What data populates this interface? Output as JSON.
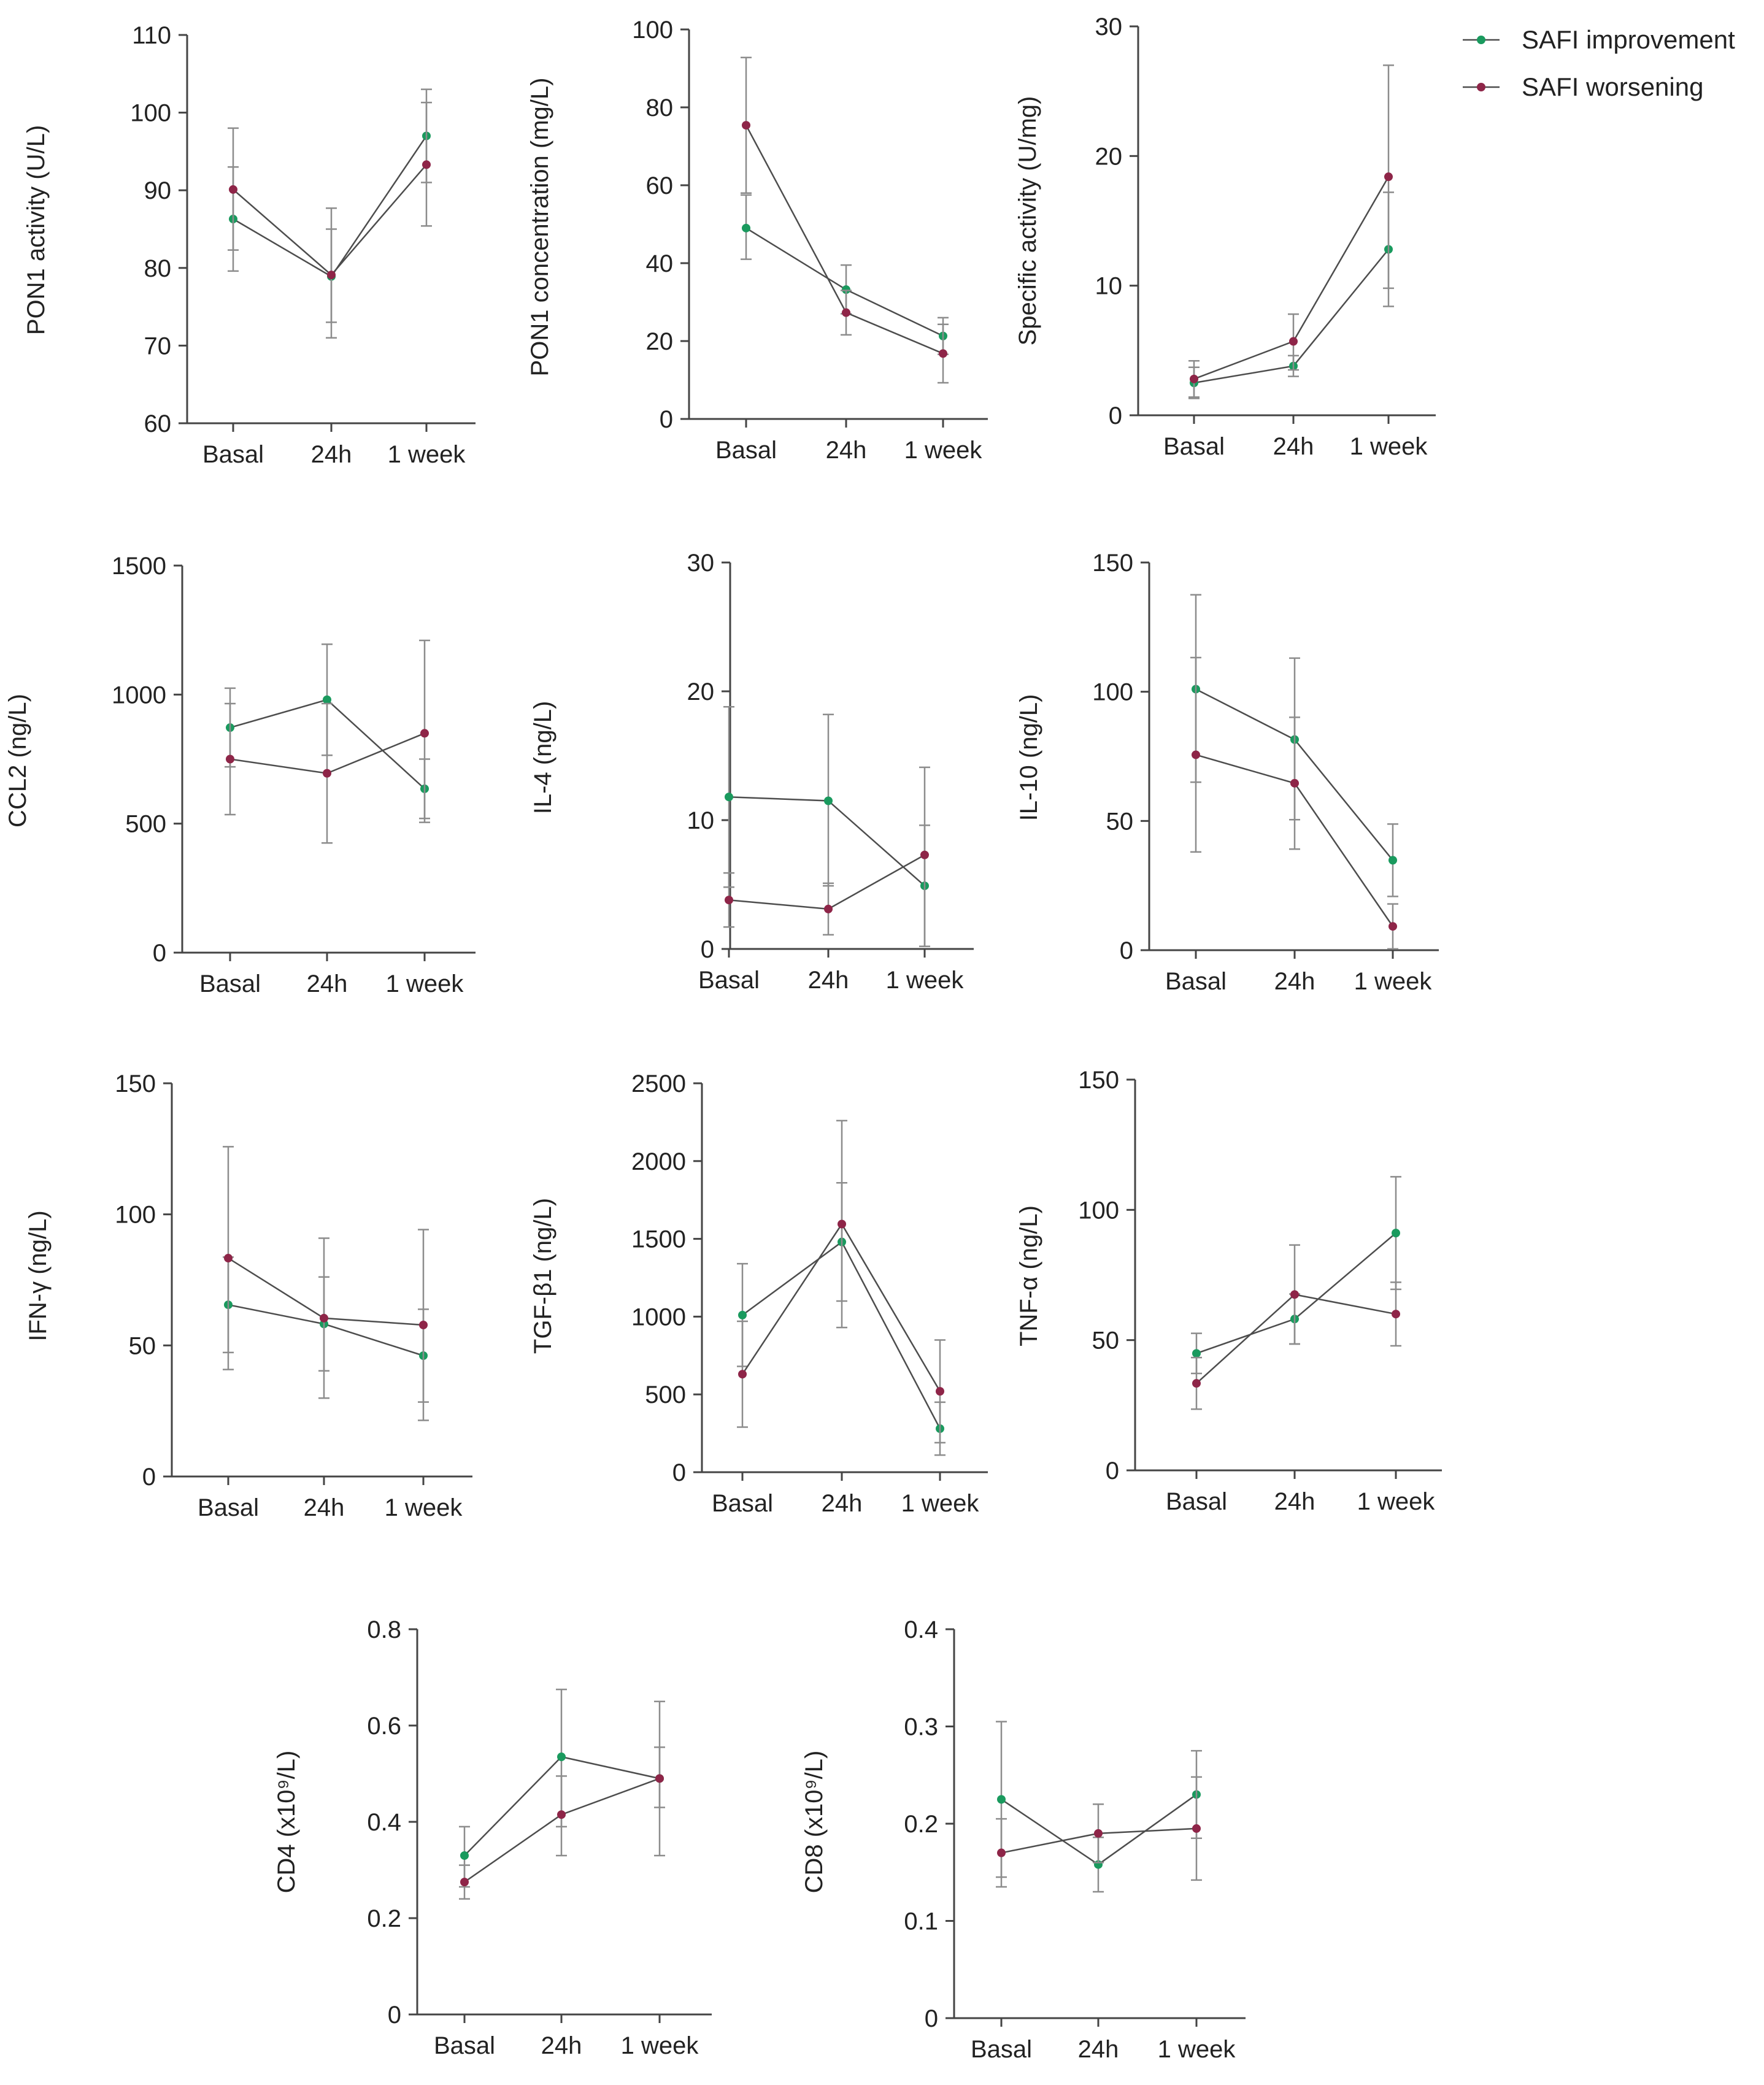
{
  "legend": {
    "items": [
      {
        "label": "SAFI improvement",
        "color": "#1a9a5e"
      },
      {
        "label": "SAFI worsening",
        "color": "#8e2548"
      }
    ]
  },
  "chart_data": [
    {
      "id": "pon1-activity",
      "type": "line",
      "ylabel": "PON1 activity (U/L)",
      "categories": [
        "Basal",
        "24h",
        "1 week"
      ],
      "ylim": [
        60,
        110
      ],
      "yticks": [
        "60",
        "70",
        "80",
        "90",
        "100",
        "110"
      ],
      "series": [
        {
          "name": "SAFI improvement",
          "color": "#1a9a5e",
          "values": [
            86.3,
            78.9,
            97.0
          ],
          "lower": [
            79.6,
            71.0,
            91.0
          ],
          "upper": [
            93.0,
            85.0,
            103.0
          ]
        },
        {
          "name": "SAFI worsening",
          "color": "#8e2548",
          "values": [
            90.1,
            79.1,
            93.3
          ],
          "lower": [
            82.3,
            73.0,
            85.4
          ],
          "upper": [
            98.0,
            87.7,
            101.3
          ]
        }
      ]
    },
    {
      "id": "pon1-concentration",
      "type": "line",
      "ylabel": "PON1 concentration (mg/L)",
      "categories": [
        "Basal",
        "24h",
        "1 week"
      ],
      "ylim": [
        0,
        100
      ],
      "yticks": [
        "0",
        "20",
        "40",
        "60",
        "80",
        "100"
      ],
      "series": [
        {
          "name": "SAFI improvement",
          "color": "#1a9a5e",
          "values": [
            49,
            33.2,
            21.3
          ],
          "lower": [
            41,
            27,
            16.6
          ],
          "upper": [
            57.5,
            39.5,
            26
          ]
        },
        {
          "name": "SAFI worsening",
          "color": "#8e2548",
          "values": [
            75.4,
            27.3,
            16.8
          ],
          "lower": [
            58,
            21.6,
            9.3
          ],
          "upper": [
            92.8,
            33,
            24.3
          ]
        }
      ]
    },
    {
      "id": "specific-activity",
      "type": "line",
      "ylabel": "Specific activity (U/mg)",
      "categories": [
        "Basal",
        "24h",
        "1 week"
      ],
      "ylim": [
        0,
        30
      ],
      "yticks": [
        "0",
        "10",
        "20",
        "30"
      ],
      "series": [
        {
          "name": "SAFI improvement",
          "color": "#1a9a5e",
          "values": [
            2.5,
            3.8,
            12.8
          ],
          "lower": [
            1.3,
            3.0,
            8.4
          ],
          "upper": [
            3.7,
            4.6,
            17.2
          ]
        },
        {
          "name": "SAFI worsening",
          "color": "#8e2548",
          "values": [
            2.8,
            5.7,
            18.4
          ],
          "lower": [
            1.4,
            3.5,
            9.8
          ],
          "upper": [
            4.2,
            7.8,
            27.0
          ]
        }
      ]
    },
    {
      "id": "ccl2",
      "type": "line",
      "ylabel": "CCL2 (ng/L)",
      "categories": [
        "Basal",
        "24h",
        "1 week"
      ],
      "ylim": [
        0,
        1500
      ],
      "yticks": [
        "0",
        "500",
        "1000",
        "1500"
      ],
      "series": [
        {
          "name": "SAFI improvement",
          "color": "#1a9a5e",
          "values": [
            872,
            980,
            635
          ],
          "lower": [
            720,
            765,
            520
          ],
          "upper": [
            1025,
            1195,
            750
          ]
        },
        {
          "name": "SAFI worsening",
          "color": "#8e2548",
          "values": [
            750,
            695,
            850
          ],
          "lower": [
            535,
            425,
            505
          ],
          "upper": [
            965,
            965,
            1210
          ]
        }
      ]
    },
    {
      "id": "il4",
      "type": "line",
      "ylabel": "IL-4 (ng/L)",
      "categories": [
        "Basal",
        "24h",
        "1 week"
      ],
      "ylim": [
        0,
        30
      ],
      "yticks": [
        "0",
        "10",
        "20",
        "30"
      ],
      "series": [
        {
          "name": "SAFI improvement",
          "color": "#1a9a5e",
          "values": [
            11.8,
            11.5,
            4.9
          ],
          "lower": [
            4.8,
            4.9,
            0.2
          ],
          "upper": [
            18.8,
            18.2,
            9.6
          ]
        },
        {
          "name": "SAFI worsening",
          "color": "#8e2548",
          "values": [
            3.8,
            3.1,
            7.3
          ],
          "lower": [
            1.7,
            1.1,
            0.2
          ],
          "upper": [
            5.9,
            5.1,
            14.1
          ]
        }
      ]
    },
    {
      "id": "il10",
      "type": "line",
      "ylabel": "IL-10 (ng/L)",
      "categories": [
        "Basal",
        "24h",
        "1 week"
      ],
      "ylim": [
        0,
        150
      ],
      "yticks": [
        "0",
        "50",
        "100",
        "150"
      ],
      "series": [
        {
          "name": "SAFI improvement",
          "color": "#1a9a5e",
          "values": [
            101,
            81.5,
            34.8
          ],
          "lower": [
            65,
            50.5,
            20.8
          ],
          "upper": [
            137.5,
            113,
            48.8
          ]
        },
        {
          "name": "SAFI worsening",
          "color": "#8e2548",
          "values": [
            75.6,
            64.6,
            9.2
          ],
          "lower": [
            38,
            39.1,
            0.5
          ],
          "upper": [
            113.2,
            90.1,
            17.9
          ]
        }
      ]
    },
    {
      "id": "ifn-gamma",
      "type": "line",
      "ylabel": "IFN-γ (ng/L)",
      "categories": [
        "Basal",
        "24h",
        "1 week"
      ],
      "ylim": [
        0,
        150
      ],
      "yticks": [
        "0",
        "50",
        "100",
        "150"
      ],
      "series": [
        {
          "name": "SAFI improvement",
          "color": "#1a9a5e",
          "values": [
            65.5,
            58.2,
            46.1
          ],
          "lower": [
            47.3,
            40.3,
            28.4
          ],
          "upper": [
            83.7,
            76.1,
            63.8
          ]
        },
        {
          "name": "SAFI worsening",
          "color": "#8e2548",
          "values": [
            83.3,
            60.4,
            57.8
          ],
          "lower": [
            40.8,
            29.9,
            21.4
          ],
          "upper": [
            125.8,
            90.9,
            94.2
          ]
        }
      ]
    },
    {
      "id": "tgf-beta1",
      "type": "line",
      "ylabel": "TGF-β1 (ng/L)",
      "categories": [
        "Basal",
        "24h",
        "1 week"
      ],
      "ylim": [
        0,
        2500
      ],
      "yticks": [
        "0",
        "500",
        "1000",
        "1500",
        "2000",
        "2500"
      ],
      "series": [
        {
          "name": "SAFI improvement",
          "color": "#1a9a5e",
          "values": [
            1010,
            1480,
            280
          ],
          "lower": [
            680,
            1100,
            110
          ],
          "upper": [
            1340,
            1860,
            450
          ]
        },
        {
          "name": "SAFI worsening",
          "color": "#8e2548",
          "values": [
            630,
            1595,
            520
          ],
          "lower": [
            290,
            930,
            190
          ],
          "upper": [
            970,
            2260,
            850
          ]
        }
      ]
    },
    {
      "id": "tnf-alpha",
      "type": "line",
      "ylabel": "TNF-α (ng/L)",
      "categories": [
        "Basal",
        "24h",
        "1 week"
      ],
      "ylim": [
        0,
        150
      ],
      "yticks": [
        "0",
        "50",
        "100",
        "150"
      ],
      "series": [
        {
          "name": "SAFI improvement",
          "color": "#1a9a5e",
          "values": [
            44.9,
            58.1,
            91.1
          ],
          "lower": [
            37.2,
            48.5,
            69.5
          ],
          "upper": [
            52.6,
            67.7,
            112.7
          ]
        },
        {
          "name": "SAFI worsening",
          "color": "#8e2548",
          "values": [
            33.4,
            67.5,
            60.0
          ],
          "lower": [
            23.5,
            48.5,
            47.8
          ],
          "upper": [
            43.3,
            86.5,
            72.2
          ]
        }
      ]
    },
    {
      "id": "cd4",
      "type": "line",
      "ylabel": "CD4 (x10⁹/L)",
      "categories": [
        "Basal",
        "24h",
        "1 week"
      ],
      "ylim": [
        0,
        0.8
      ],
      "yticks": [
        "0",
        "0.2",
        "0.4",
        "0.6",
        "0.8"
      ],
      "series": [
        {
          "name": "SAFI improvement",
          "color": "#1a9a5e",
          "values": [
            0.33,
            0.535,
            0.49
          ],
          "lower": [
            0.265,
            0.39,
            0.33
          ],
          "upper": [
            0.39,
            0.675,
            0.65
          ]
        },
        {
          "name": "SAFI worsening",
          "color": "#8e2548",
          "values": [
            0.275,
            0.415,
            0.49
          ],
          "lower": [
            0.24,
            0.33,
            0.43
          ],
          "upper": [
            0.31,
            0.495,
            0.555
          ]
        }
      ]
    },
    {
      "id": "cd8",
      "type": "line",
      "ylabel": "CD8 (x10⁹/L)",
      "categories": [
        "Basal",
        "24h",
        "1 week"
      ],
      "ylim": [
        0,
        0.4
      ],
      "yticks": [
        "0",
        "0.1",
        "0.2",
        "0.3",
        "0.4"
      ],
      "series": [
        {
          "name": "SAFI improvement",
          "color": "#1a9a5e",
          "values": [
            0.225,
            0.158,
            0.23
          ],
          "lower": [
            0.145,
            0.13,
            0.185
          ],
          "upper": [
            0.305,
            0.186,
            0.275
          ]
        },
        {
          "name": "SAFI worsening",
          "color": "#8e2548",
          "values": [
            0.17,
            0.19,
            0.195
          ],
          "lower": [
            0.135,
            0.16,
            0.142
          ],
          "upper": [
            0.205,
            0.22,
            0.248
          ]
        }
      ]
    }
  ]
}
